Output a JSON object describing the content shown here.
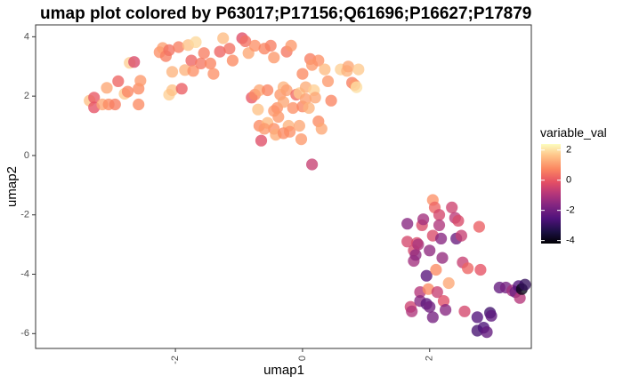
{
  "chart_data": {
    "type": "scatter",
    "title": "umap plot colored by P63017;P17156;Q61696;P16627;P17879",
    "xlabel": "umap1",
    "ylabel": "umap2",
    "xlim": [
      -4.2,
      3.6
    ],
    "ylim": [
      -6.5,
      4.4
    ],
    "x_ticks": [
      -2,
      0,
      2
    ],
    "x_tick_labels": [
      "-2",
      "0",
      "2"
    ],
    "y_ticks": [
      -6,
      -4,
      -2,
      0,
      2,
      4
    ],
    "y_tick_labels": [
      "-6",
      "-4",
      "-2",
      "0",
      "2",
      "4"
    ],
    "grid": false,
    "legend": {
      "title": "variable_val",
      "placement": "right",
      "range": [
        -4.2,
        2.4
      ],
      "ticks": [
        2,
        0,
        -2,
        -4
      ],
      "tick_labels": [
        "2",
        "0",
        "-2",
        "-4"
      ],
      "colormap": "magma"
    },
    "points": [
      {
        "x": -3.35,
        "y": 1.85,
        "v": 1.6
      },
      {
        "x": -3.28,
        "y": 1.95,
        "v": 0.0
      },
      {
        "x": -3.28,
        "y": 1.62,
        "v": -0.1
      },
      {
        "x": -3.15,
        "y": 1.72,
        "v": 1.2
      },
      {
        "x": -3.08,
        "y": 2.28,
        "v": 1.2
      },
      {
        "x": -3.05,
        "y": 1.72,
        "v": 0.8
      },
      {
        "x": -2.95,
        "y": 1.72,
        "v": 0.6
      },
      {
        "x": -2.9,
        "y": 2.5,
        "v": 0.2
      },
      {
        "x": -2.8,
        "y": 2.08,
        "v": 1.7
      },
      {
        "x": -2.75,
        "y": 2.15,
        "v": 0.7
      },
      {
        "x": -2.72,
        "y": 3.12,
        "v": 1.8
      },
      {
        "x": -2.65,
        "y": 3.15,
        "v": -0.3
      },
      {
        "x": -2.58,
        "y": 2.25,
        "v": 0.8
      },
      {
        "x": -2.55,
        "y": 2.52,
        "v": 1.0
      },
      {
        "x": -2.58,
        "y": 1.72,
        "v": 0.8
      },
      {
        "x": -2.25,
        "y": 3.48,
        "v": 0.9
      },
      {
        "x": -2.2,
        "y": 3.62,
        "v": 1.1
      },
      {
        "x": -2.15,
        "y": 3.35,
        "v": 0.6
      },
      {
        "x": -2.1,
        "y": 3.55,
        "v": 0.4
      },
      {
        "x": -2.1,
        "y": 2.05,
        "v": 1.8
      },
      {
        "x": -2.05,
        "y": 2.82,
        "v": 1.4
      },
      {
        "x": -2.05,
        "y": 2.2,
        "v": 1.6
      },
      {
        "x": -1.95,
        "y": 3.65,
        "v": 0.6
      },
      {
        "x": -1.9,
        "y": 2.25,
        "v": 0.1
      },
      {
        "x": -1.85,
        "y": 2.88,
        "v": 1.4
      },
      {
        "x": -1.8,
        "y": 3.72,
        "v": 1.6
      },
      {
        "x": -1.75,
        "y": 3.2,
        "v": 0.2
      },
      {
        "x": -1.72,
        "y": 2.85,
        "v": 0.9
      },
      {
        "x": -1.68,
        "y": 3.82,
        "v": 1.9
      },
      {
        "x": -1.6,
        "y": 3.1,
        "v": 0.5
      },
      {
        "x": -1.55,
        "y": 3.45,
        "v": 0.6
      },
      {
        "x": -1.45,
        "y": 3.1,
        "v": 0.7
      },
      {
        "x": -1.4,
        "y": 2.75,
        "v": 0.9
      },
      {
        "x": -1.3,
        "y": 3.5,
        "v": 0.2
      },
      {
        "x": -1.25,
        "y": 3.95,
        "v": 1.5
      },
      {
        "x": -1.15,
        "y": 3.6,
        "v": 0.4
      },
      {
        "x": -1.1,
        "y": 3.2,
        "v": 0.8
      },
      {
        "x": -0.95,
        "y": 3.95,
        "v": -0.2
      },
      {
        "x": -0.9,
        "y": 3.85,
        "v": 0.4
      },
      {
        "x": -0.85,
        "y": 3.45,
        "v": 1.2
      },
      {
        "x": -0.8,
        "y": 1.95,
        "v": 0.0
      },
      {
        "x": -0.75,
        "y": 3.7,
        "v": 0.9
      },
      {
        "x": -0.75,
        "y": 2.05,
        "v": 0.8
      },
      {
        "x": -0.7,
        "y": 1.55,
        "v": 1.6
      },
      {
        "x": -0.68,
        "y": 2.2,
        "v": 1.2
      },
      {
        "x": -0.68,
        "y": 1.0,
        "v": 0.8
      },
      {
        "x": -0.65,
        "y": 0.5,
        "v": -0.2
      },
      {
        "x": -0.6,
        "y": 3.6,
        "v": 0.7
      },
      {
        "x": -0.55,
        "y": 1.1,
        "v": 1.5
      },
      {
        "x": -0.55,
        "y": 2.2,
        "v": 0.7
      },
      {
        "x": -0.5,
        "y": 3.7,
        "v": 0.6
      },
      {
        "x": -0.45,
        "y": 3.3,
        "v": 1.0
      },
      {
        "x": -0.45,
        "y": 1.5,
        "v": 1.0
      },
      {
        "x": -0.45,
        "y": 0.9,
        "v": 0.9
      },
      {
        "x": -0.42,
        "y": 0.7,
        "v": 1.3
      },
      {
        "x": -0.4,
        "y": 1.6,
        "v": 0.9
      },
      {
        "x": -0.38,
        "y": 1.3,
        "v": 1.0
      },
      {
        "x": -0.35,
        "y": 2.05,
        "v": 1.0
      },
      {
        "x": -0.3,
        "y": 1.8,
        "v": 1.2
      },
      {
        "x": -0.3,
        "y": 2.3,
        "v": 1.4
      },
      {
        "x": -0.25,
        "y": 3.5,
        "v": 0.5
      },
      {
        "x": -0.25,
        "y": 2.2,
        "v": 1.1
      },
      {
        "x": -0.22,
        "y": 1.0,
        "v": 1.4
      },
      {
        "x": -0.2,
        "y": 0.8,
        "v": 0.9
      },
      {
        "x": -0.18,
        "y": 3.7,
        "v": 1.0
      },
      {
        "x": -0.15,
        "y": 1.6,
        "v": 0.9
      },
      {
        "x": -0.1,
        "y": 2.05,
        "v": 0.3
      },
      {
        "x": -0.05,
        "y": 2.1,
        "v": 1.7
      },
      {
        "x": -0.05,
        "y": 1.0,
        "v": 1.2
      },
      {
        "x": -0.02,
        "y": 0.55,
        "v": 1.0
      },
      {
        "x": 0.0,
        "y": 2.75,
        "v": 0.8
      },
      {
        "x": 0.0,
        "y": 1.65,
        "v": 0.7
      },
      {
        "x": 0.05,
        "y": 1.9,
        "v": 1.1
      },
      {
        "x": 0.05,
        "y": 2.3,
        "v": 1.3
      },
      {
        "x": 0.1,
        "y": 1.6,
        "v": 1.4
      },
      {
        "x": 0.12,
        "y": 3.25,
        "v": 0.6
      },
      {
        "x": 0.15,
        "y": 3.05,
        "v": 1.0
      },
      {
        "x": 0.18,
        "y": 2.2,
        "v": 1.8
      },
      {
        "x": 0.2,
        "y": 1.95,
        "v": 1.2
      },
      {
        "x": 0.25,
        "y": 1.15,
        "v": 0.8
      },
      {
        "x": 0.25,
        "y": 3.2,
        "v": 0.9
      },
      {
        "x": 0.3,
        "y": 0.9,
        "v": 1.2
      },
      {
        "x": 0.35,
        "y": 2.9,
        "v": 1.5
      },
      {
        "x": 0.4,
        "y": 2.5,
        "v": 1.0
      },
      {
        "x": 0.45,
        "y": 1.85,
        "v": 0.7
      },
      {
        "x": -0.6,
        "y": 0.9,
        "v": 1.0
      },
      {
        "x": -0.3,
        "y": 0.75,
        "v": 0.8
      },
      {
        "x": 0.6,
        "y": 2.9,
        "v": 1.8
      },
      {
        "x": 0.7,
        "y": 2.85,
        "v": 1.4
      },
      {
        "x": 0.72,
        "y": 3.0,
        "v": 1.2
      },
      {
        "x": 0.78,
        "y": 2.45,
        "v": 0.6
      },
      {
        "x": 0.82,
        "y": 2.38,
        "v": 1.0
      },
      {
        "x": 0.85,
        "y": 2.3,
        "v": 2.0
      },
      {
        "x": 0.88,
        "y": 2.9,
        "v": 1.7
      },
      {
        "x": 0.15,
        "y": -0.3,
        "v": -0.6
      },
      {
        "x": 1.65,
        "y": -2.3,
        "v": -1.6
      },
      {
        "x": 1.65,
        "y": -2.9,
        "v": -0.4
      },
      {
        "x": 1.7,
        "y": -5.1,
        "v": -0.5
      },
      {
        "x": 1.72,
        "y": -5.25,
        "v": -1.0
      },
      {
        "x": 1.75,
        "y": -3.2,
        "v": -0.4
      },
      {
        "x": 1.75,
        "y": -3.55,
        "v": -1.2
      },
      {
        "x": 1.78,
        "y": -3.35,
        "v": -1.5
      },
      {
        "x": 1.8,
        "y": -2.95,
        "v": -0.3
      },
      {
        "x": 1.82,
        "y": -3.0,
        "v": -1.1
      },
      {
        "x": 1.85,
        "y": -4.6,
        "v": -0.9
      },
      {
        "x": 1.85,
        "y": -4.9,
        "v": -1.6
      },
      {
        "x": 1.88,
        "y": -2.35,
        "v": -0.3
      },
      {
        "x": 1.9,
        "y": -2.15,
        "v": -1.2
      },
      {
        "x": 1.95,
        "y": -5.0,
        "v": -2.3
      },
      {
        "x": 1.95,
        "y": -4.05,
        "v": -2.4
      },
      {
        "x": 1.98,
        "y": -4.5,
        "v": 0.8
      },
      {
        "x": 2.0,
        "y": -3.2,
        "v": -1.5
      },
      {
        "x": 2.0,
        "y": -5.1,
        "v": -2.0
      },
      {
        "x": 2.05,
        "y": -2.7,
        "v": -0.3
      },
      {
        "x": 2.05,
        "y": -1.5,
        "v": 0.9
      },
      {
        "x": 2.05,
        "y": -5.45,
        "v": -1.9
      },
      {
        "x": 2.08,
        "y": -1.75,
        "v": 0.2
      },
      {
        "x": 2.1,
        "y": -3.85,
        "v": 0.8
      },
      {
        "x": 2.12,
        "y": -4.6,
        "v": -0.6
      },
      {
        "x": 2.15,
        "y": -2.0,
        "v": -0.4
      },
      {
        "x": 2.15,
        "y": -2.35,
        "v": -1.0
      },
      {
        "x": 2.18,
        "y": -2.8,
        "v": -1.6
      },
      {
        "x": 2.2,
        "y": -3.45,
        "v": -1.4
      },
      {
        "x": 2.22,
        "y": -4.9,
        "v": -0.2
      },
      {
        "x": 2.25,
        "y": -5.2,
        "v": -1.6
      },
      {
        "x": 2.3,
        "y": -4.3,
        "v": 1.2
      },
      {
        "x": 2.35,
        "y": -1.75,
        "v": -0.5
      },
      {
        "x": 2.4,
        "y": -2.1,
        "v": -0.8
      },
      {
        "x": 2.42,
        "y": -2.8,
        "v": -2.1
      },
      {
        "x": 2.45,
        "y": -2.2,
        "v": -0.3
      },
      {
        "x": 2.5,
        "y": -2.7,
        "v": -0.6
      },
      {
        "x": 2.52,
        "y": -3.6,
        "v": -0.6
      },
      {
        "x": 2.55,
        "y": -5.25,
        "v": -0.4
      },
      {
        "x": 2.6,
        "y": -3.8,
        "v": 0.2
      },
      {
        "x": 2.75,
        "y": -5.45,
        "v": -2.5
      },
      {
        "x": 2.75,
        "y": -5.9,
        "v": -2.7
      },
      {
        "x": 2.78,
        "y": -2.4,
        "v": 0.1
      },
      {
        "x": 2.8,
        "y": -3.85,
        "v": -0.1
      },
      {
        "x": 2.85,
        "y": -5.8,
        "v": -2.6
      },
      {
        "x": 2.9,
        "y": -5.95,
        "v": -2.2
      },
      {
        "x": 2.95,
        "y": -5.3,
        "v": -2.8
      },
      {
        "x": 2.97,
        "y": -5.4,
        "v": -2.3
      },
      {
        "x": 3.1,
        "y": -4.45,
        "v": -2.2
      },
      {
        "x": 3.2,
        "y": -4.45,
        "v": -1.9
      },
      {
        "x": 3.3,
        "y": -4.55,
        "v": -1.2
      },
      {
        "x": 3.35,
        "y": -4.6,
        "v": -2.0
      },
      {
        "x": 3.4,
        "y": -4.4,
        "v": -2.5
      },
      {
        "x": 3.42,
        "y": -4.8,
        "v": -0.9
      },
      {
        "x": 3.45,
        "y": -4.5,
        "v": -4.0
      },
      {
        "x": 3.5,
        "y": -4.35,
        "v": -3.0
      }
    ]
  }
}
